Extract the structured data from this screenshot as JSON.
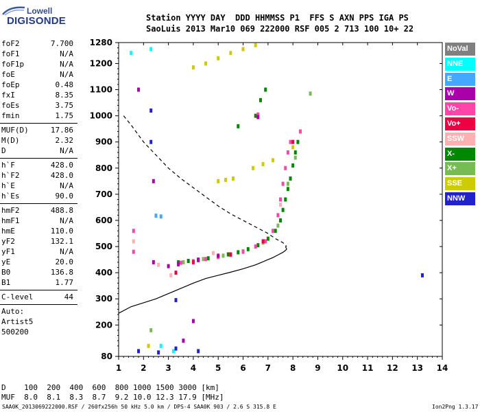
{
  "brand": {
    "line1": "Lowell",
    "line2": "DIGISONDE"
  },
  "header": {
    "line1": "Station YYYY DAY  DDD HHMMSS P1  FFS S AXN PPS IGA PS",
    "line2": "SaoLuis 2013 Mar10 069 222000 RSF 005 2 713 100 10+ 22"
  },
  "params": {
    "group1": [
      {
        "label": "foF2",
        "value": "7.700"
      },
      {
        "label": "foF1",
        "value": "N/A"
      },
      {
        "label": "foF1p",
        "value": "N/A"
      },
      {
        "label": "foE",
        "value": "N/A"
      },
      {
        "label": "foEp",
        "value": "0.48"
      },
      {
        "label": "fxI",
        "value": "8.35"
      },
      {
        "label": "foEs",
        "value": "3.75"
      },
      {
        "label": "fmin",
        "value": "1.75"
      }
    ],
    "group2": [
      {
        "label": "MUF(D)",
        "value": "17.86"
      },
      {
        "label": "M(D)",
        "value": "2.32"
      },
      {
        "label": "D",
        "value": "N/A"
      }
    ],
    "group3": [
      {
        "label": "h`F",
        "value": "428.0"
      },
      {
        "label": "h`F2",
        "value": "428.0"
      },
      {
        "label": "h`E",
        "value": "N/A"
      },
      {
        "label": "h`Es",
        "value": "90.0"
      }
    ],
    "group4": [
      {
        "label": "hmF2",
        "value": "488.8"
      },
      {
        "label": "hmF1",
        "value": "N/A"
      },
      {
        "label": "hmE",
        "value": "110.0"
      },
      {
        "label": "yF2",
        "value": "132.1"
      },
      {
        "label": "yF1",
        "value": "N/A"
      },
      {
        "label": "yE",
        "value": "20.0"
      },
      {
        "label": "B0",
        "value": "136.8"
      },
      {
        "label": "B1",
        "value": "1.77"
      }
    ],
    "clevel": {
      "label": "C-level",
      "value": "44"
    },
    "autoscaler": {
      "line1": "Auto:",
      "line2": "Artist5",
      "line3": "500200"
    }
  },
  "conversion": {
    "d_row": "D    100  200  400  600  800 1000 1500 3000 [km]",
    "muf_row": "MUF  8.0  8.1  8.3  8.7  9.2 10.0 12.3 17.9 [MHz]"
  },
  "footer": "SAA0K_2013069222000.RSF / 260fx256h 50 kHz 5.0 km / DPS-4 SAA0K 903 / 2.6 S 315.8 E",
  "version": "Ion2Png 1.3.17",
  "legend": [
    {
      "label": "NoVal",
      "color": "#808080",
      "text": "#ffffff"
    },
    {
      "label": "NNE",
      "color": "#00ffff",
      "text": "#ffffff"
    },
    {
      "label": "E",
      "color": "#44a8ff",
      "text": "#ffffff"
    },
    {
      "label": "W",
      "color": "#aa00aa",
      "text": "#ffffff"
    },
    {
      "label": "Vo-",
      "color": "#ff44aa",
      "text": "#ffffff"
    },
    {
      "label": "Vo+",
      "color": "#ee0044",
      "text": "#ffffff"
    },
    {
      "label": "SSW",
      "color": "#ffb0b0",
      "text": "#ffffff"
    },
    {
      "label": "X-",
      "color": "#008800",
      "text": "#ffffff"
    },
    {
      "label": "X+",
      "color": "#77bb55",
      "text": "#ffffff"
    },
    {
      "label": "SSE",
      "color": "#cccc00",
      "text": "#ffffff"
    },
    {
      "label": "NNW",
      "color": "#2222cc",
      "text": "#ffffff"
    }
  ],
  "chart_data": {
    "type": "scatter",
    "title": "",
    "xlabel": "",
    "ylabel": "",
    "xlim": [
      1,
      14
    ],
    "ylim": [
      80,
      1280
    ],
    "x_ticks": [
      1,
      2,
      3,
      4,
      5,
      6,
      7,
      8,
      9,
      10,
      11,
      12,
      13,
      14
    ],
    "y_ticks": [
      80,
      200,
      300,
      400,
      500,
      600,
      700,
      800,
      900,
      1000,
      1100,
      1200,
      1280
    ],
    "grid": false,
    "legend_position": "right",
    "series": [
      {
        "name": "X-",
        "color": "#008800",
        "points": [
          [
            3.4,
            440
          ],
          [
            3.8,
            445
          ],
          [
            4.2,
            448
          ],
          [
            4.6,
            455
          ],
          [
            5.0,
            462
          ],
          [
            5.4,
            470
          ],
          [
            5.8,
            478
          ],
          [
            6.2,
            490
          ],
          [
            6.6,
            505
          ],
          [
            7.0,
            530
          ],
          [
            7.3,
            560
          ],
          [
            7.5,
            600
          ],
          [
            7.6,
            640
          ],
          [
            7.7,
            680
          ],
          [
            7.8,
            720
          ],
          [
            7.9,
            760
          ],
          [
            8.0,
            810
          ],
          [
            8.1,
            860
          ],
          [
            8.2,
            900
          ],
          [
            6.5,
            1000
          ],
          [
            6.7,
            1060
          ],
          [
            6.9,
            1100
          ],
          [
            5.8,
            960
          ]
        ]
      },
      {
        "name": "X+",
        "color": "#77bb55",
        "points": [
          [
            3.6,
            440
          ],
          [
            4.4,
            452
          ],
          [
            5.2,
            465
          ],
          [
            6.0,
            482
          ],
          [
            6.8,
            515
          ],
          [
            7.4,
            580
          ],
          [
            7.8,
            740
          ],
          [
            8.1,
            840
          ],
          [
            8.7,
            1085
          ],
          [
            2.3,
            180
          ]
        ]
      },
      {
        "name": "Vo-",
        "color": "#ff44aa",
        "points": [
          [
            3.5,
            438
          ],
          [
            4.0,
            444
          ],
          [
            4.5,
            452
          ],
          [
            5.0,
            460
          ],
          [
            5.5,
            468
          ],
          [
            6.0,
            480
          ],
          [
            6.5,
            500
          ],
          [
            6.9,
            520
          ],
          [
            7.2,
            560
          ],
          [
            7.4,
            620
          ],
          [
            7.5,
            680
          ],
          [
            7.6,
            740
          ],
          [
            7.7,
            800
          ],
          [
            7.8,
            860
          ],
          [
            7.9,
            900
          ],
          [
            8.3,
            940
          ],
          [
            6.6,
            1005
          ],
          [
            1.6,
            560
          ],
          [
            1.6,
            480
          ]
        ]
      },
      {
        "name": "Vo+",
        "color": "#ee0044",
        "points": [
          [
            3.3,
            400
          ],
          [
            4.0,
            440
          ],
          [
            5.5,
            470
          ],
          [
            6.8,
            520
          ],
          [
            8.0,
            900
          ]
        ]
      },
      {
        "name": "W",
        "color": "#aa00aa",
        "points": [
          [
            1.8,
            1100
          ],
          [
            2.4,
            750
          ],
          [
            3.0,
            425
          ],
          [
            3.4,
            432
          ],
          [
            4.2,
            450
          ],
          [
            5.0,
            465
          ],
          [
            6.6,
            995
          ],
          [
            2.4,
            440
          ],
          [
            4.0,
            215
          ],
          [
            3.6,
            140
          ]
        ]
      },
      {
        "name": "SSE",
        "color": "#cccc00",
        "points": [
          [
            4.0,
            1185
          ],
          [
            4.5,
            1200
          ],
          [
            5.0,
            1220
          ],
          [
            5.5,
            1240
          ],
          [
            6.0,
            1255
          ],
          [
            6.5,
            1270
          ],
          [
            5.0,
            750
          ],
          [
            5.3,
            755
          ],
          [
            5.6,
            760
          ],
          [
            6.4,
            800
          ],
          [
            6.8,
            815
          ],
          [
            7.2,
            830
          ],
          [
            8.0,
            880
          ],
          [
            2.2,
            120
          ]
        ]
      },
      {
        "name": "SSW",
        "color": "#ffb0b0",
        "points": [
          [
            1.6,
            520
          ],
          [
            2.6,
            430
          ],
          [
            3.1,
            390
          ],
          [
            4.8,
            475
          ],
          [
            7.5,
            660
          ]
        ]
      },
      {
        "name": "NNE",
        "color": "#00ffff",
        "points": [
          [
            1.5,
            1240
          ],
          [
            2.3,
            1255
          ],
          [
            2.7,
            120
          ],
          [
            3.2,
            100
          ]
        ]
      },
      {
        "name": "E",
        "color": "#44a8ff",
        "points": [
          [
            2.7,
            615
          ],
          [
            2.5,
            618
          ]
        ]
      },
      {
        "name": "NNW",
        "color": "#2222cc",
        "points": [
          [
            2.3,
            1020
          ],
          [
            2.3,
            900
          ],
          [
            3.3,
            295
          ],
          [
            13.2,
            390
          ],
          [
            1.8,
            100
          ],
          [
            2.6,
            95
          ],
          [
            3.3,
            110
          ],
          [
            4.2,
            100
          ]
        ]
      }
    ],
    "profile_solid": {
      "x": [
        1,
        1.5,
        2,
        2.5,
        3,
        3.5,
        4,
        4.5,
        5,
        5.5,
        6,
        6.5,
        7,
        7.2,
        7.4,
        7.6,
        7.7,
        7.75,
        7.7
      ],
      "y": [
        245,
        270,
        285,
        300,
        320,
        340,
        360,
        378,
        390,
        402,
        415,
        430,
        450,
        458,
        468,
        478,
        485,
        490,
        500
      ]
    },
    "profile_dashed": {
      "x": [
        1.2,
        1.5,
        2,
        2.5,
        3,
        3.5,
        4,
        4.5,
        5,
        5.5,
        6,
        6.5,
        7,
        7.3,
        7.6,
        7.75
      ],
      "y": [
        1000,
        965,
        900,
        850,
        800,
        760,
        725,
        690,
        655,
        625,
        600,
        575,
        550,
        530,
        515,
        500
      ]
    }
  }
}
